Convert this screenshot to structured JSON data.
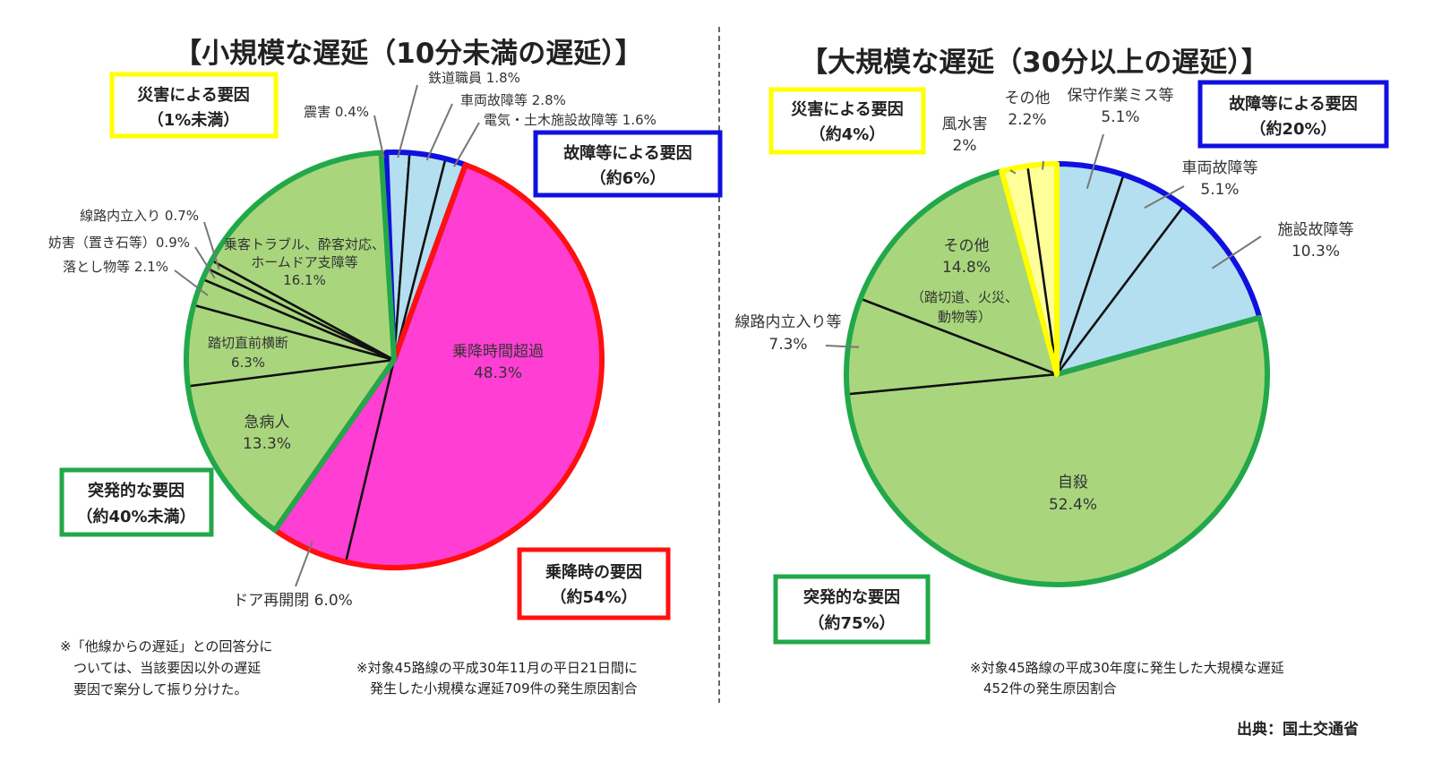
{
  "source": "出典：国土交通省",
  "charts": {
    "left": {
      "title": "【小規模な遅延（10分未満の遅延）】",
      "note_left": [
        "※「他線からの遅延」との回答分に",
        "　ついては、当該要因以外の遅延",
        "　要因で案分して振り分けた。"
      ],
      "note_right": [
        "※対象45路線の平成30年11月の平日21日間に",
        "　発生した小規模な遅延709件の発生原因割合"
      ],
      "groups": {
        "disaster": [
          "災害による要因",
          "（1%未満）"
        ],
        "failure": [
          "故障等による要因",
          "（約6%）"
        ],
        "sudden": [
          "突発的な要因",
          "（約40%未満）"
        ],
        "boarding": [
          "乗降時の要因",
          "（約54%）"
        ]
      }
    },
    "right": {
      "title": "【大規模な遅延（30分以上の遅延）】",
      "note": [
        "※対象45路線の平成30年度に発生した大規模な遅延",
        "　452件の発生原因割合"
      ],
      "groups": {
        "disaster": [
          "災害による要因",
          "（約4%）"
        ],
        "failure": [
          "故障等による要因",
          "（約20%）"
        ],
        "sudden": [
          "突発的な要因",
          "（約75%）"
        ]
      }
    }
  },
  "colors": {
    "disaster_fill": "#ffff99",
    "failure_fill": "#b4dff0",
    "sudden_fill": "#a9d67d",
    "boarding_fill": "#ff3fd3",
    "disaster_border": "#ffff00",
    "failure_border": "#1010e0",
    "sudden_border": "#22a84a",
    "boarding_border": "#ff1010"
  },
  "chart_data": [
    {
      "type": "pie",
      "title": "【小規模な遅延（10分未満の遅延）】",
      "slices": [
        {
          "label": "震害",
          "value": 0.4,
          "text": "震害 0.4%",
          "group": "disaster"
        },
        {
          "label": "鉄道職員",
          "value": 1.8,
          "text": "鉄道職員 1.8%",
          "group": "failure"
        },
        {
          "label": "車両故障等",
          "value": 2.8,
          "text": "車両故障等 2.8%",
          "group": "failure"
        },
        {
          "label": "電気・土木施設故障等",
          "value": 1.6,
          "text": "電気・土木施設故障等 1.6%",
          "group": "failure"
        },
        {
          "label": "乗降時間超過",
          "value": 48.3,
          "text": [
            "乗降時間超過",
            "48.3%"
          ],
          "group": "boarding"
        },
        {
          "label": "ドア再開閉",
          "value": 6.0,
          "text": "ドア再開閉 6.0%",
          "group": "boarding"
        },
        {
          "label": "急病人",
          "value": 13.3,
          "text": [
            "急病人",
            "13.3%"
          ],
          "group": "sudden"
        },
        {
          "label": "踏切直前横断",
          "value": 6.3,
          "text": [
            "踏切直前横断",
            "6.3%"
          ],
          "group": "sudden"
        },
        {
          "label": "落とし物等",
          "value": 2.1,
          "text": "落とし物等 2.1%",
          "group": "sudden"
        },
        {
          "label": "妨害（置き石等）",
          "value": 0.9,
          "text": "妨害（置き石等）0.9%",
          "group": "sudden"
        },
        {
          "label": "線路内立入り",
          "value": 0.7,
          "text": "線路内立入り 0.7%",
          "group": "sudden"
        },
        {
          "label": "乗客トラブル、酔客対応、ホームドア支障等",
          "value": 16.1,
          "text": [
            "乗客トラブル、酔客対応、",
            "ホームドア支障等",
            "16.1%"
          ],
          "group": "sudden"
        }
      ]
    },
    {
      "type": "pie",
      "title": "【大規模な遅延（30分以上の遅延）】",
      "slices": [
        {
          "label": "保守作業ミス等",
          "value": 5.1,
          "text": [
            "保守作業ミス等",
            "5.1%"
          ],
          "group": "failure"
        },
        {
          "label": "車両故障等",
          "value": 5.1,
          "text": [
            "車両故障等",
            "5.1%"
          ],
          "group": "failure"
        },
        {
          "label": "施設故障等",
          "value": 10.3,
          "text": [
            "施設故障等",
            "10.3%"
          ],
          "group": "failure"
        },
        {
          "label": "自殺",
          "value": 52.4,
          "text": [
            "自殺",
            "52.4%"
          ],
          "group": "sudden"
        },
        {
          "label": "線路内立入り等",
          "value": 7.3,
          "text": [
            "線路内立入り等",
            "7.3%"
          ],
          "group": "sudden"
        },
        {
          "label": "その他（踏切道、火災、動物等）",
          "value": 14.8,
          "text": [
            "その他",
            "14.8%",
            "（踏切道、火災、",
            "動物等）"
          ],
          "group": "sudden"
        },
        {
          "label": "風水害",
          "value": 2,
          "text": [
            "風水害",
            "2%"
          ],
          "group": "disaster"
        },
        {
          "label": "その他",
          "value": 2.2,
          "text": [
            "その他",
            "2.2%"
          ],
          "group": "disaster"
        }
      ]
    }
  ]
}
